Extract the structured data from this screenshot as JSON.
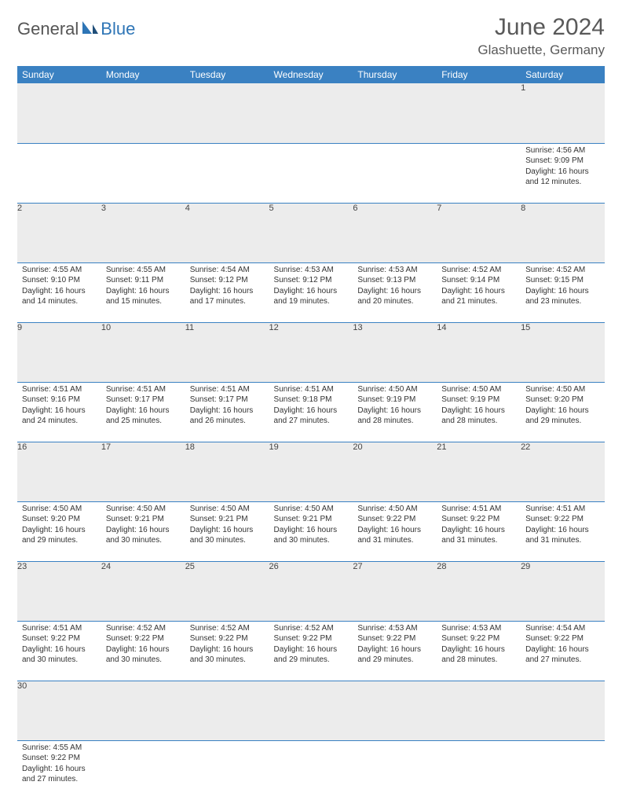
{
  "brand": {
    "part1": "General",
    "part2": "Blue"
  },
  "title": "June 2024",
  "location": "Glashuette, Germany",
  "colors": {
    "header_bg": "#3a81c2",
    "header_text": "#ffffff",
    "daynum_bg": "#ececec",
    "border": "#3a81c2",
    "title_color": "#595959",
    "brand_gray": "#555555",
    "brand_blue": "#2e75b6"
  },
  "weekdays": [
    "Sunday",
    "Monday",
    "Tuesday",
    "Wednesday",
    "Thursday",
    "Friday",
    "Saturday"
  ],
  "weeks": [
    [
      null,
      null,
      null,
      null,
      null,
      null,
      {
        "n": "1",
        "sr": "Sunrise: 4:56 AM",
        "ss": "Sunset: 9:09 PM",
        "d1": "Daylight: 16 hours",
        "d2": "and 12 minutes."
      }
    ],
    [
      {
        "n": "2",
        "sr": "Sunrise: 4:55 AM",
        "ss": "Sunset: 9:10 PM",
        "d1": "Daylight: 16 hours",
        "d2": "and 14 minutes."
      },
      {
        "n": "3",
        "sr": "Sunrise: 4:55 AM",
        "ss": "Sunset: 9:11 PM",
        "d1": "Daylight: 16 hours",
        "d2": "and 15 minutes."
      },
      {
        "n": "4",
        "sr": "Sunrise: 4:54 AM",
        "ss": "Sunset: 9:12 PM",
        "d1": "Daylight: 16 hours",
        "d2": "and 17 minutes."
      },
      {
        "n": "5",
        "sr": "Sunrise: 4:53 AM",
        "ss": "Sunset: 9:12 PM",
        "d1": "Daylight: 16 hours",
        "d2": "and 19 minutes."
      },
      {
        "n": "6",
        "sr": "Sunrise: 4:53 AM",
        "ss": "Sunset: 9:13 PM",
        "d1": "Daylight: 16 hours",
        "d2": "and 20 minutes."
      },
      {
        "n": "7",
        "sr": "Sunrise: 4:52 AM",
        "ss": "Sunset: 9:14 PM",
        "d1": "Daylight: 16 hours",
        "d2": "and 21 minutes."
      },
      {
        "n": "8",
        "sr": "Sunrise: 4:52 AM",
        "ss": "Sunset: 9:15 PM",
        "d1": "Daylight: 16 hours",
        "d2": "and 23 minutes."
      }
    ],
    [
      {
        "n": "9",
        "sr": "Sunrise: 4:51 AM",
        "ss": "Sunset: 9:16 PM",
        "d1": "Daylight: 16 hours",
        "d2": "and 24 minutes."
      },
      {
        "n": "10",
        "sr": "Sunrise: 4:51 AM",
        "ss": "Sunset: 9:17 PM",
        "d1": "Daylight: 16 hours",
        "d2": "and 25 minutes."
      },
      {
        "n": "11",
        "sr": "Sunrise: 4:51 AM",
        "ss": "Sunset: 9:17 PM",
        "d1": "Daylight: 16 hours",
        "d2": "and 26 minutes."
      },
      {
        "n": "12",
        "sr": "Sunrise: 4:51 AM",
        "ss": "Sunset: 9:18 PM",
        "d1": "Daylight: 16 hours",
        "d2": "and 27 minutes."
      },
      {
        "n": "13",
        "sr": "Sunrise: 4:50 AM",
        "ss": "Sunset: 9:19 PM",
        "d1": "Daylight: 16 hours",
        "d2": "and 28 minutes."
      },
      {
        "n": "14",
        "sr": "Sunrise: 4:50 AM",
        "ss": "Sunset: 9:19 PM",
        "d1": "Daylight: 16 hours",
        "d2": "and 28 minutes."
      },
      {
        "n": "15",
        "sr": "Sunrise: 4:50 AM",
        "ss": "Sunset: 9:20 PM",
        "d1": "Daylight: 16 hours",
        "d2": "and 29 minutes."
      }
    ],
    [
      {
        "n": "16",
        "sr": "Sunrise: 4:50 AM",
        "ss": "Sunset: 9:20 PM",
        "d1": "Daylight: 16 hours",
        "d2": "and 29 minutes."
      },
      {
        "n": "17",
        "sr": "Sunrise: 4:50 AM",
        "ss": "Sunset: 9:21 PM",
        "d1": "Daylight: 16 hours",
        "d2": "and 30 minutes."
      },
      {
        "n": "18",
        "sr": "Sunrise: 4:50 AM",
        "ss": "Sunset: 9:21 PM",
        "d1": "Daylight: 16 hours",
        "d2": "and 30 minutes."
      },
      {
        "n": "19",
        "sr": "Sunrise: 4:50 AM",
        "ss": "Sunset: 9:21 PM",
        "d1": "Daylight: 16 hours",
        "d2": "and 30 minutes."
      },
      {
        "n": "20",
        "sr": "Sunrise: 4:50 AM",
        "ss": "Sunset: 9:22 PM",
        "d1": "Daylight: 16 hours",
        "d2": "and 31 minutes."
      },
      {
        "n": "21",
        "sr": "Sunrise: 4:51 AM",
        "ss": "Sunset: 9:22 PM",
        "d1": "Daylight: 16 hours",
        "d2": "and 31 minutes."
      },
      {
        "n": "22",
        "sr": "Sunrise: 4:51 AM",
        "ss": "Sunset: 9:22 PM",
        "d1": "Daylight: 16 hours",
        "d2": "and 31 minutes."
      }
    ],
    [
      {
        "n": "23",
        "sr": "Sunrise: 4:51 AM",
        "ss": "Sunset: 9:22 PM",
        "d1": "Daylight: 16 hours",
        "d2": "and 30 minutes."
      },
      {
        "n": "24",
        "sr": "Sunrise: 4:52 AM",
        "ss": "Sunset: 9:22 PM",
        "d1": "Daylight: 16 hours",
        "d2": "and 30 minutes."
      },
      {
        "n": "25",
        "sr": "Sunrise: 4:52 AM",
        "ss": "Sunset: 9:22 PM",
        "d1": "Daylight: 16 hours",
        "d2": "and 30 minutes."
      },
      {
        "n": "26",
        "sr": "Sunrise: 4:52 AM",
        "ss": "Sunset: 9:22 PM",
        "d1": "Daylight: 16 hours",
        "d2": "and 29 minutes."
      },
      {
        "n": "27",
        "sr": "Sunrise: 4:53 AM",
        "ss": "Sunset: 9:22 PM",
        "d1": "Daylight: 16 hours",
        "d2": "and 29 minutes."
      },
      {
        "n": "28",
        "sr": "Sunrise: 4:53 AM",
        "ss": "Sunset: 9:22 PM",
        "d1": "Daylight: 16 hours",
        "d2": "and 28 minutes."
      },
      {
        "n": "29",
        "sr": "Sunrise: 4:54 AM",
        "ss": "Sunset: 9:22 PM",
        "d1": "Daylight: 16 hours",
        "d2": "and 27 minutes."
      }
    ],
    [
      {
        "n": "30",
        "sr": "Sunrise: 4:55 AM",
        "ss": "Sunset: 9:22 PM",
        "d1": "Daylight: 16 hours",
        "d2": "and 27 minutes."
      },
      null,
      null,
      null,
      null,
      null,
      null
    ]
  ]
}
